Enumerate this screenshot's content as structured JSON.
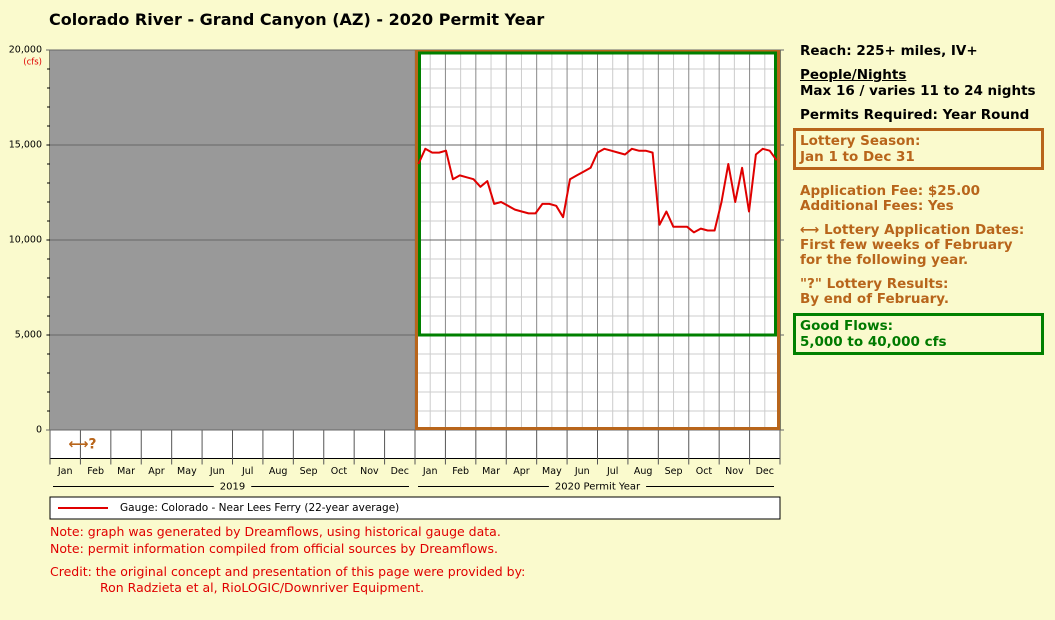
{
  "chart_data": {
    "type": "line",
    "title": "Colorado River - Grand Canyon (AZ) - 2020 Permit Year",
    "y_unit": "(cfs)",
    "ylim": [
      -1500,
      20000
    ],
    "yticks": [
      0,
      {
        "value": 5000,
        "label": "5,000"
      },
      {
        "value": 10000,
        "label": "10,000"
      },
      {
        "value": 15000,
        "label": "15,000"
      },
      {
        "value": 20000,
        "label": "20,000"
      }
    ],
    "grid": true,
    "years": [
      {
        "label": "2019",
        "months": [
          "Jan",
          "Feb",
          "Mar",
          "Apr",
          "May",
          "Jun",
          "Jul",
          "Aug",
          "Sep",
          "Oct",
          "Nov",
          "Dec"
        ]
      },
      {
        "label": "2020 Permit Year",
        "months": [
          "Jan",
          "Feb",
          "Mar",
          "Apr",
          "May",
          "Jun",
          "Jul",
          "Aug",
          "Sep",
          "Oct",
          "Nov",
          "Dec"
        ]
      }
    ],
    "annotation": "⟷?",
    "series": [
      {
        "name": "Gauge: Colorado - Near Lees Ferry (22-year average)",
        "color": "#e00000",
        "values": [
          14000,
          14800,
          14600,
          14600,
          14700,
          13200,
          13400,
          13300,
          13200,
          12800,
          13100,
          11900,
          12000,
          11800,
          11600,
          11500,
          11400,
          11400,
          11900,
          11900,
          11800,
          11200,
          13200,
          13400,
          13600,
          13800,
          14600,
          14800,
          14700,
          14600,
          14500,
          14800,
          14700,
          14700,
          14600,
          10800,
          11500,
          10700,
          10700,
          10700,
          10400,
          10600,
          10500,
          10500,
          12000,
          14000,
          12000,
          13800,
          11500,
          14500,
          14800,
          14700,
          14200
        ]
      }
    ]
  },
  "info": {
    "reach": "Reach: 225+ miles, IV+",
    "people_heading": "People/Nights",
    "people": "Max 16 / varies 11 to 24 nights",
    "permits": "Permits Required: Year Round",
    "lottery_season": [
      "Lottery Season:",
      "Jan 1 to Dec 31"
    ],
    "fees": [
      "Application Fee: $25.00",
      "Additional Fees: Yes"
    ],
    "dates": [
      "⟷ Lottery Application Dates:",
      "First few weeks of February",
      "for the following year."
    ],
    "results": [
      "\"?\" Lottery Results:",
      "By end of February."
    ],
    "good_flows": [
      "Good Flows:",
      "5,000 to 40,000 cfs"
    ]
  },
  "notes": [
    "Note: graph was generated by Dreamflows, using historical gauge data.",
    "Note: permit information compiled from official sources by Dreamflows."
  ],
  "credit": [
    "Credit: the original concept and presentation of this page were provided by:",
    "Ron Radzieta et al, RioLOGIC/Downriver Equipment."
  ]
}
